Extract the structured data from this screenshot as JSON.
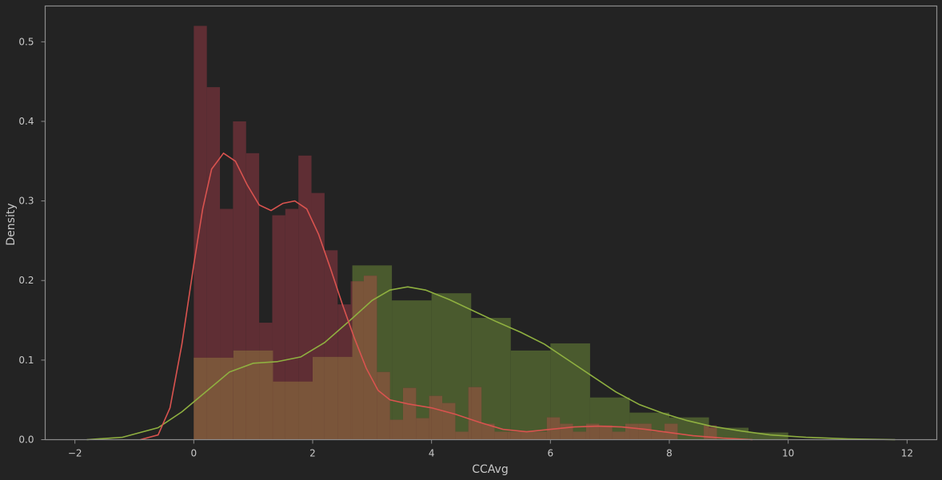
{
  "chart_data": {
    "type": "bar",
    "xlabel": "CCAvg",
    "ylabel": "Density",
    "xlim": [
      -2.5,
      12.5
    ],
    "ylim": [
      0,
      0.545
    ],
    "x_ticks": [
      -2,
      0,
      2,
      4,
      6,
      8,
      10,
      12
    ],
    "x_tick_labels": [
      "−2",
      "0",
      "2",
      "4",
      "6",
      "8",
      "10",
      "12"
    ],
    "y_ticks": [
      0.0,
      0.1,
      0.2,
      0.3,
      0.4,
      0.5
    ],
    "y_tick_labels": [
      "0.0",
      "0.1",
      "0.2",
      "0.3",
      "0.4",
      "0.5"
    ],
    "grid": false,
    "colors": {
      "background": "#232323",
      "axes_edge": "#8c8c8c",
      "text": "#c8c8c8",
      "series_a_bar": "#5f2e34",
      "series_a_line": "#d9534f",
      "series_b_bar": "#4a5a2e",
      "series_b_line": "#8fb040",
      "overlap_bar": "#7a553a"
    },
    "series": [
      {
        "bar_color": "#5f2e34",
        "line_color": "#d9534f",
        "bins": [
          {
            "x0": 0.0,
            "x1": 0.22,
            "h": 0.52
          },
          {
            "x0": 0.22,
            "x1": 0.44,
            "h": 0.443
          },
          {
            "x0": 0.44,
            "x1": 0.66,
            "h": 0.29
          },
          {
            "x0": 0.66,
            "x1": 0.88,
            "h": 0.4
          },
          {
            "x0": 0.88,
            "x1": 1.1,
            "h": 0.36
          },
          {
            "x0": 1.1,
            "x1": 1.32,
            "h": 0.147
          },
          {
            "x0": 1.32,
            "x1": 1.54,
            "h": 0.282
          },
          {
            "x0": 1.54,
            "x1": 1.76,
            "h": 0.29
          },
          {
            "x0": 1.76,
            "x1": 1.98,
            "h": 0.357
          },
          {
            "x0": 1.98,
            "x1": 2.2,
            "h": 0.31
          },
          {
            "x0": 2.2,
            "x1": 2.42,
            "h": 0.238
          },
          {
            "x0": 2.42,
            "x1": 2.64,
            "h": 0.17
          },
          {
            "x0": 2.64,
            "x1": 2.86,
            "h": 0.199
          },
          {
            "x0": 2.86,
            "x1": 3.08,
            "h": 0.206
          },
          {
            "x0": 3.08,
            "x1": 3.3,
            "h": 0.085
          },
          {
            "x0": 3.3,
            "x1": 3.52,
            "h": 0.025
          },
          {
            "x0": 3.52,
            "x1": 3.74,
            "h": 0.065
          },
          {
            "x0": 3.74,
            "x1": 3.96,
            "h": 0.027
          },
          {
            "x0": 3.96,
            "x1": 4.18,
            "h": 0.055
          },
          {
            "x0": 4.18,
            "x1": 4.4,
            "h": 0.046
          },
          {
            "x0": 4.4,
            "x1": 4.62,
            "h": 0.01
          },
          {
            "x0": 4.62,
            "x1": 4.84,
            "h": 0.066
          },
          {
            "x0": 4.84,
            "x1": 5.06,
            "h": 0.02
          },
          {
            "x0": 5.06,
            "x1": 5.28,
            "h": 0.01
          },
          {
            "x0": 5.28,
            "x1": 5.5,
            "h": 0.01
          },
          {
            "x0": 5.5,
            "x1": 5.72,
            "h": 0.01
          },
          {
            "x0": 5.72,
            "x1": 5.94,
            "h": 0.01
          },
          {
            "x0": 5.94,
            "x1": 6.16,
            "h": 0.028
          },
          {
            "x0": 6.16,
            "x1": 6.38,
            "h": 0.02
          },
          {
            "x0": 6.38,
            "x1": 6.6,
            "h": 0.01
          },
          {
            "x0": 6.6,
            "x1": 6.82,
            "h": 0.02
          },
          {
            "x0": 6.82,
            "x1": 7.04,
            "h": 0.018
          },
          {
            "x0": 7.04,
            "x1": 7.26,
            "h": 0.01
          },
          {
            "x0": 7.26,
            "x1": 7.48,
            "h": 0.02
          },
          {
            "x0": 7.48,
            "x1": 7.7,
            "h": 0.02
          },
          {
            "x0": 7.7,
            "x1": 7.92,
            "h": 0.01
          },
          {
            "x0": 7.92,
            "x1": 8.14,
            "h": 0.02
          },
          {
            "x0": 8.14,
            "x1": 8.36,
            "h": 0.0
          },
          {
            "x0": 8.36,
            "x1": 8.58,
            "h": 0.0
          },
          {
            "x0": 8.58,
            "x1": 8.8,
            "h": 0.018
          }
        ],
        "kde": [
          [
            -0.9,
            0.0
          ],
          [
            -0.6,
            0.006
          ],
          [
            -0.4,
            0.04
          ],
          [
            -0.2,
            0.12
          ],
          [
            0.0,
            0.22
          ],
          [
            0.15,
            0.29
          ],
          [
            0.3,
            0.34
          ],
          [
            0.5,
            0.36
          ],
          [
            0.7,
            0.35
          ],
          [
            0.9,
            0.32
          ],
          [
            1.1,
            0.295
          ],
          [
            1.3,
            0.288
          ],
          [
            1.5,
            0.297
          ],
          [
            1.7,
            0.3
          ],
          [
            1.9,
            0.29
          ],
          [
            2.1,
            0.258
          ],
          [
            2.3,
            0.215
          ],
          [
            2.5,
            0.17
          ],
          [
            2.7,
            0.128
          ],
          [
            2.9,
            0.09
          ],
          [
            3.1,
            0.062
          ],
          [
            3.3,
            0.05
          ],
          [
            3.6,
            0.045
          ],
          [
            4.0,
            0.04
          ],
          [
            4.4,
            0.032
          ],
          [
            4.8,
            0.022
          ],
          [
            5.2,
            0.013
          ],
          [
            5.6,
            0.01
          ],
          [
            6.0,
            0.013
          ],
          [
            6.4,
            0.016
          ],
          [
            6.8,
            0.017
          ],
          [
            7.2,
            0.016
          ],
          [
            7.6,
            0.013
          ],
          [
            8.0,
            0.009
          ],
          [
            8.4,
            0.005
          ],
          [
            8.9,
            0.002
          ],
          [
            9.4,
            0.0
          ]
        ]
      },
      {
        "bar_color": "#4a5a2e",
        "line_color": "#8fb040",
        "bins": [
          {
            "x0": 0.0,
            "x1": 0.667,
            "h": 0.103
          },
          {
            "x0": 0.667,
            "x1": 1.333,
            "h": 0.112
          },
          {
            "x0": 1.333,
            "x1": 2.0,
            "h": 0.073
          },
          {
            "x0": 2.0,
            "x1": 2.667,
            "h": 0.104
          },
          {
            "x0": 2.667,
            "x1": 3.333,
            "h": 0.219
          },
          {
            "x0": 3.333,
            "x1": 4.0,
            "h": 0.175
          },
          {
            "x0": 4.0,
            "x1": 4.667,
            "h": 0.184
          },
          {
            "x0": 4.667,
            "x1": 5.333,
            "h": 0.153
          },
          {
            "x0": 5.333,
            "x1": 6.0,
            "h": 0.112
          },
          {
            "x0": 6.0,
            "x1": 6.667,
            "h": 0.121
          },
          {
            "x0": 6.667,
            "x1": 7.333,
            "h": 0.053
          },
          {
            "x0": 7.333,
            "x1": 8.0,
            "h": 0.034
          },
          {
            "x0": 8.0,
            "x1": 8.667,
            "h": 0.028
          },
          {
            "x0": 8.667,
            "x1": 9.333,
            "h": 0.015
          },
          {
            "x0": 9.333,
            "x1": 10.0,
            "h": 0.009
          }
        ],
        "kde": [
          [
            -1.8,
            0.0
          ],
          [
            -1.2,
            0.003
          ],
          [
            -0.6,
            0.015
          ],
          [
            -0.2,
            0.035
          ],
          [
            0.2,
            0.06
          ],
          [
            0.6,
            0.085
          ],
          [
            1.0,
            0.096
          ],
          [
            1.4,
            0.098
          ],
          [
            1.8,
            0.104
          ],
          [
            2.2,
            0.122
          ],
          [
            2.6,
            0.148
          ],
          [
            3.0,
            0.175
          ],
          [
            3.3,
            0.188
          ],
          [
            3.6,
            0.192
          ],
          [
            3.9,
            0.188
          ],
          [
            4.3,
            0.176
          ],
          [
            4.7,
            0.162
          ],
          [
            5.1,
            0.148
          ],
          [
            5.5,
            0.135
          ],
          [
            5.9,
            0.12
          ],
          [
            6.3,
            0.1
          ],
          [
            6.7,
            0.08
          ],
          [
            7.1,
            0.06
          ],
          [
            7.5,
            0.044
          ],
          [
            7.9,
            0.033
          ],
          [
            8.3,
            0.024
          ],
          [
            8.7,
            0.017
          ],
          [
            9.2,
            0.011
          ],
          [
            9.7,
            0.006
          ],
          [
            10.3,
            0.003
          ],
          [
            11.0,
            0.001
          ],
          [
            11.8,
            0.0
          ]
        ]
      }
    ]
  }
}
